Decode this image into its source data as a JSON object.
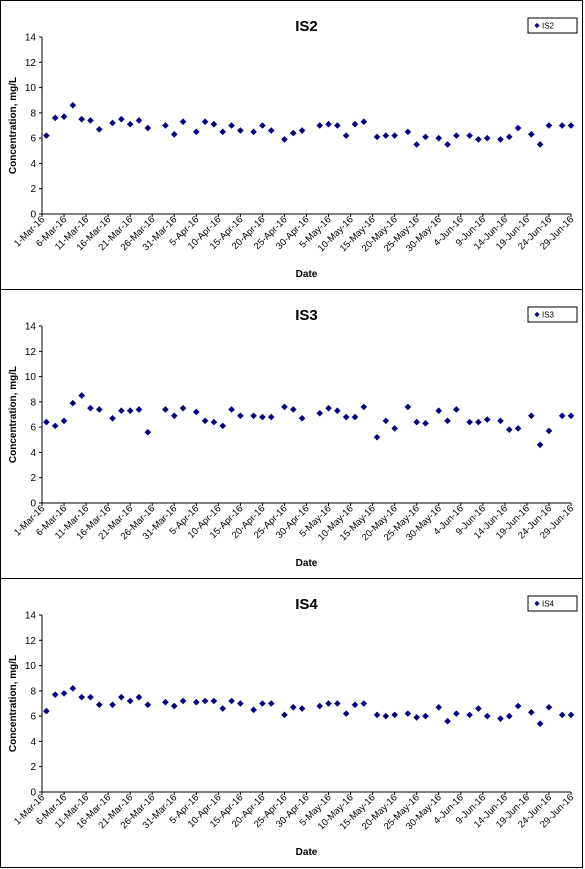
{
  "chart_data": [
    {
      "type": "scatter",
      "title": "IS2",
      "xlabel": "Date",
      "ylabel": "Concentration, mg/L",
      "ylim": [
        0,
        14
      ],
      "yticks": [
        "0",
        "2",
        "4",
        "6",
        "8",
        "10",
        "12",
        "14"
      ],
      "grid": false,
      "legend_position": "top-right",
      "x_tick_labels": [
        "1-Mar-16",
        "6-Mar-16",
        "11-Mar-16",
        "16-Mar-16",
        "21-Mar-16",
        "26-Mar-16",
        "31-Mar-16",
        "5-Apr-16",
        "10-Apr-16",
        "15-Apr-16",
        "20-Apr-16",
        "25-Apr-16",
        "30-Apr-16",
        "5-May-16",
        "10-May-16",
        "15-May-16",
        "20-May-16",
        "25-May-16",
        "30-May-16",
        "4-Jun-16",
        "9-Jun-16",
        "14-Jun-16",
        "19-Jun-16",
        "24-Jun-16",
        "29-Jun-16"
      ],
      "series": [
        {
          "name": "IS2",
          "color": "#000080",
          "x": [
            "2016-03-02",
            "2016-03-04",
            "2016-03-06",
            "2016-03-08",
            "2016-03-10",
            "2016-03-12",
            "2016-03-14",
            "2016-03-17",
            "2016-03-19",
            "2016-03-21",
            "2016-03-23",
            "2016-03-25",
            "2016-03-29",
            "2016-03-31",
            "2016-04-02",
            "2016-04-05",
            "2016-04-07",
            "2016-04-09",
            "2016-04-11",
            "2016-04-13",
            "2016-04-15",
            "2016-04-18",
            "2016-04-20",
            "2016-04-22",
            "2016-04-25",
            "2016-04-27",
            "2016-04-29",
            "2016-05-03",
            "2016-05-05",
            "2016-05-07",
            "2016-05-09",
            "2016-05-11",
            "2016-05-13",
            "2016-05-16",
            "2016-05-18",
            "2016-05-20",
            "2016-05-23",
            "2016-05-25",
            "2016-05-27",
            "2016-05-30",
            "2016-06-01",
            "2016-06-03",
            "2016-06-06",
            "2016-06-08",
            "2016-06-10",
            "2016-06-13",
            "2016-06-15",
            "2016-06-17",
            "2016-06-20",
            "2016-06-22",
            "2016-06-24",
            "2016-06-27",
            "2016-06-29"
          ],
          "y": [
            6.2,
            7.6,
            7.7,
            8.6,
            7.5,
            7.4,
            6.7,
            7.2,
            7.5,
            7.1,
            7.4,
            6.8,
            7.0,
            6.3,
            7.3,
            6.5,
            7.3,
            7.1,
            6.5,
            7.0,
            6.6,
            6.5,
            7.0,
            6.6,
            5.9,
            6.4,
            6.6,
            7.0,
            7.1,
            7.0,
            6.2,
            7.1,
            7.3,
            6.1,
            6.2,
            6.2,
            6.5,
            5.5,
            6.1,
            6.0,
            5.5,
            6.2,
            6.2,
            5.9,
            6.0,
            5.9,
            6.1,
            6.8,
            6.3,
            5.5,
            7.0,
            7.0,
            7.0
          ]
        }
      ]
    },
    {
      "type": "scatter",
      "title": "IS3",
      "xlabel": "Date",
      "ylabel": "Concentration, mg/L",
      "ylim": [
        0,
        14
      ],
      "yticks": [
        "0",
        "2",
        "4",
        "6",
        "8",
        "10",
        "12",
        "14"
      ],
      "grid": false,
      "legend_position": "top-right",
      "x_tick_labels": [
        "1-Mar-16",
        "6-Mar-16",
        "11-Mar-16",
        "16-Mar-16",
        "21-Mar-16",
        "26-Mar-16",
        "31-Mar-16",
        "5-Apr-16",
        "10-Apr-16",
        "15-Apr-16",
        "20-Apr-16",
        "25-Apr-16",
        "30-Apr-16",
        "5-May-16",
        "10-May-16",
        "15-May-16",
        "20-May-16",
        "25-May-16",
        "30-May-16",
        "4-Jun-16",
        "9-Jun-16",
        "14-Jun-16",
        "19-Jun-16",
        "24-Jun-16",
        "29-Jun-16"
      ],
      "series": [
        {
          "name": "IS3",
          "color": "#000080",
          "x": [
            "2016-03-02",
            "2016-03-04",
            "2016-03-06",
            "2016-03-08",
            "2016-03-10",
            "2016-03-12",
            "2016-03-14",
            "2016-03-17",
            "2016-03-19",
            "2016-03-21",
            "2016-03-23",
            "2016-03-25",
            "2016-03-29",
            "2016-03-31",
            "2016-04-02",
            "2016-04-05",
            "2016-04-07",
            "2016-04-09",
            "2016-04-11",
            "2016-04-13",
            "2016-04-15",
            "2016-04-18",
            "2016-04-20",
            "2016-04-22",
            "2016-04-25",
            "2016-04-27",
            "2016-04-29",
            "2016-05-03",
            "2016-05-05",
            "2016-05-07",
            "2016-05-09",
            "2016-05-11",
            "2016-05-13",
            "2016-05-16",
            "2016-05-18",
            "2016-05-20",
            "2016-05-23",
            "2016-05-25",
            "2016-05-27",
            "2016-05-30",
            "2016-06-01",
            "2016-06-03",
            "2016-06-06",
            "2016-06-08",
            "2016-06-10",
            "2016-06-13",
            "2016-06-15",
            "2016-06-17",
            "2016-06-20",
            "2016-06-22",
            "2016-06-24",
            "2016-06-27",
            "2016-06-29"
          ],
          "y": [
            6.4,
            6.1,
            6.5,
            7.9,
            8.5,
            7.5,
            7.4,
            6.7,
            7.3,
            7.3,
            7.4,
            5.6,
            7.4,
            6.9,
            7.5,
            7.2,
            6.5,
            6.4,
            6.1,
            7.4,
            6.9,
            6.9,
            6.8,
            6.8,
            7.6,
            7.4,
            6.7,
            7.1,
            7.5,
            7.3,
            6.8,
            6.8,
            7.6,
            5.2,
            6.5,
            5.9,
            7.6,
            6.4,
            6.3,
            7.3,
            6.5,
            7.4,
            6.4,
            6.4,
            6.6,
            6.5,
            5.8,
            5.9,
            6.9,
            4.6,
            5.7,
            6.9,
            6.9
          ]
        }
      ]
    },
    {
      "type": "scatter",
      "title": "IS4",
      "xlabel": "Date",
      "ylabel": "Concentration, mg/L",
      "ylim": [
        0,
        14
      ],
      "yticks": [
        "0",
        "2",
        "4",
        "6",
        "8",
        "10",
        "12",
        "14"
      ],
      "grid": false,
      "legend_position": "top-right",
      "x_tick_labels": [
        "1-Mar-16",
        "6-Mar-16",
        "11-Mar-16",
        "16-Mar-16",
        "21-Mar-16",
        "26-Mar-16",
        "31-Mar-16",
        "5-Apr-16",
        "10-Apr-16",
        "15-Apr-16",
        "20-Apr-16",
        "25-Apr-16",
        "30-Apr-16",
        "5-May-16",
        "10-May-16",
        "15-May-16",
        "20-May-16",
        "25-May-16",
        "30-May-16",
        "4-Jun-16",
        "9-Jun-16",
        "14-Jun-16",
        "19-Jun-16",
        "24-Jun-16",
        "29-Jun-16"
      ],
      "series": [
        {
          "name": "IS4",
          "color": "#000080",
          "x": [
            "2016-03-02",
            "2016-03-04",
            "2016-03-06",
            "2016-03-08",
            "2016-03-10",
            "2016-03-12",
            "2016-03-14",
            "2016-03-17",
            "2016-03-19",
            "2016-03-21",
            "2016-03-23",
            "2016-03-25",
            "2016-03-29",
            "2016-03-31",
            "2016-04-02",
            "2016-04-05",
            "2016-04-07",
            "2016-04-09",
            "2016-04-11",
            "2016-04-13",
            "2016-04-15",
            "2016-04-18",
            "2016-04-20",
            "2016-04-22",
            "2016-04-25",
            "2016-04-27",
            "2016-04-29",
            "2016-05-03",
            "2016-05-05",
            "2016-05-07",
            "2016-05-09",
            "2016-05-11",
            "2016-05-13",
            "2016-05-16",
            "2016-05-18",
            "2016-05-20",
            "2016-05-23",
            "2016-05-25",
            "2016-05-27",
            "2016-05-30",
            "2016-06-01",
            "2016-06-03",
            "2016-06-06",
            "2016-06-08",
            "2016-06-10",
            "2016-06-13",
            "2016-06-15",
            "2016-06-17",
            "2016-06-20",
            "2016-06-22",
            "2016-06-24",
            "2016-06-27",
            "2016-06-29"
          ],
          "y": [
            6.4,
            7.7,
            7.8,
            8.2,
            7.5,
            7.5,
            6.9,
            6.9,
            7.5,
            7.2,
            7.5,
            6.9,
            7.1,
            6.8,
            7.2,
            7.1,
            7.2,
            7.2,
            6.6,
            7.2,
            7.0,
            6.5,
            7.0,
            7.0,
            6.1,
            6.7,
            6.6,
            6.8,
            7.0,
            7.0,
            6.2,
            6.9,
            7.0,
            6.1,
            6.0,
            6.1,
            6.2,
            5.9,
            6.0,
            6.7,
            5.6,
            6.2,
            6.1,
            6.6,
            6.0,
            5.8,
            6.0,
            6.8,
            6.3,
            5.4,
            6.7,
            6.1,
            6.1
          ]
        }
      ]
    }
  ]
}
